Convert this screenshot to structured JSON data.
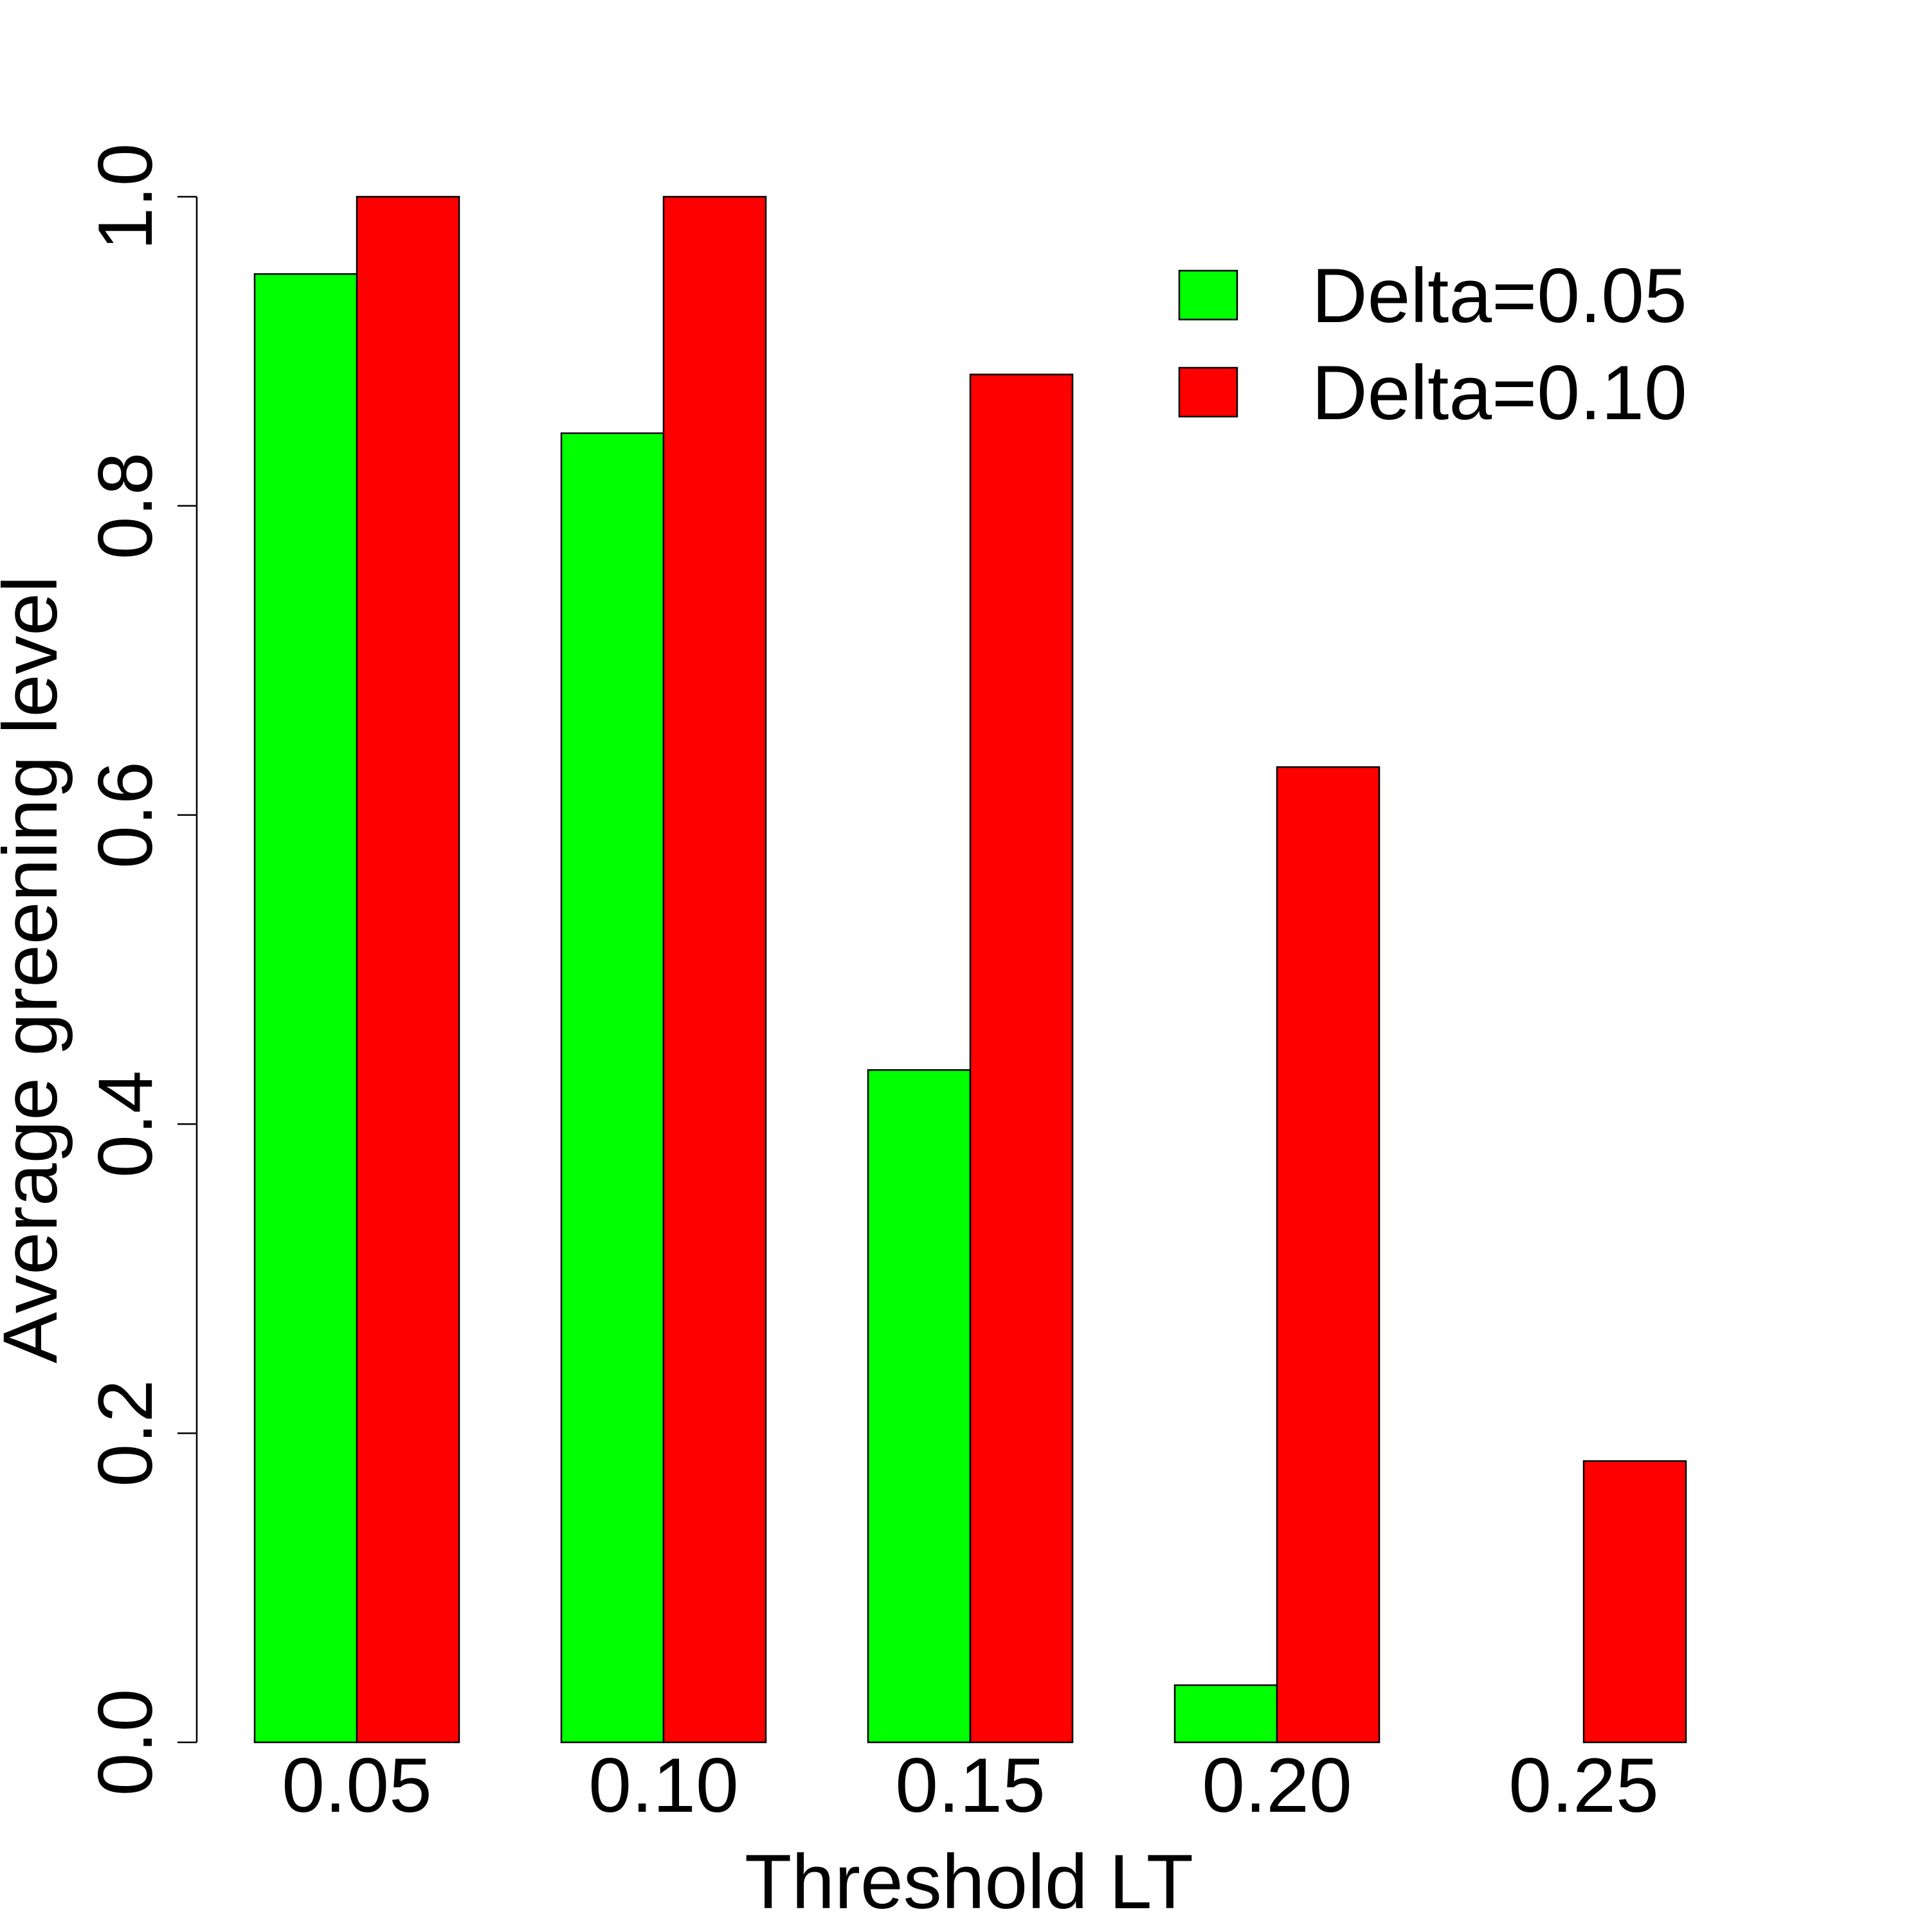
{
  "chart_data": {
    "type": "bar",
    "xlabel": "Threshold LT",
    "ylabel": "Average greening level",
    "categories": [
      "0.05",
      "0.10",
      "0.15",
      "0.20",
      "0.25"
    ],
    "series": [
      {
        "name": "Delta=0.05",
        "color": "#00ff00",
        "values": [
          0.95,
          0.847,
          0.435,
          0.037,
          0.0
        ]
      },
      {
        "name": "Delta=0.10",
        "color": "#ff0000",
        "values": [
          1.0,
          1.0,
          0.885,
          0.631,
          0.182
        ]
      }
    ],
    "ylim": [
      0,
      1
    ],
    "yticks": [
      "0.0",
      "0.2",
      "0.4",
      "0.6",
      "0.8",
      "1.0"
    ],
    "grid": false,
    "legend_position": "top-right"
  }
}
